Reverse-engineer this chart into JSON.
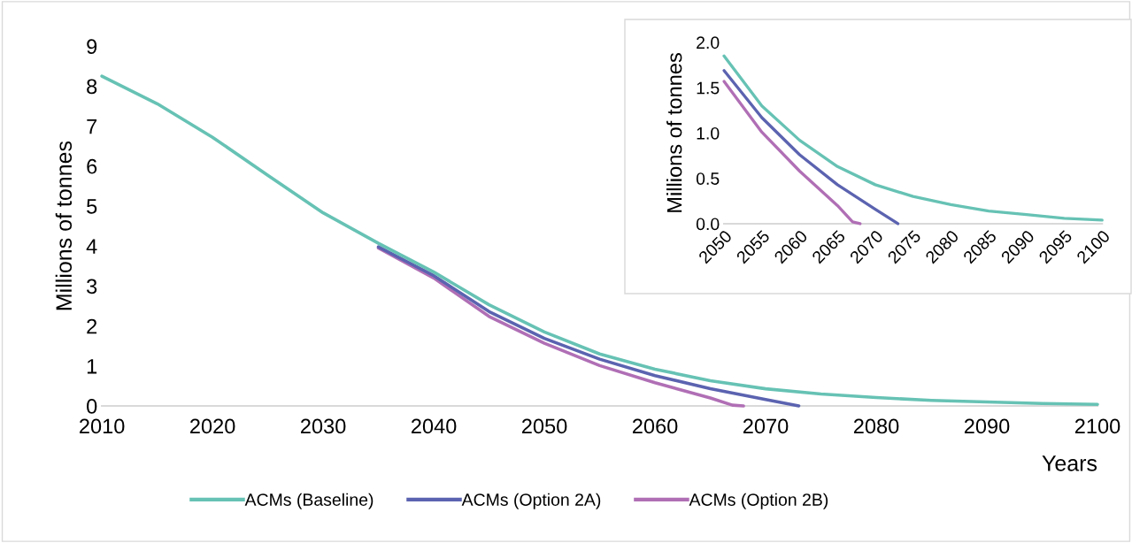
{
  "chart_data": [
    {
      "type": "line",
      "xlabel": "Years",
      "ylabel": "Millions of tonnes",
      "xlim": [
        2010,
        2100
      ],
      "ylim": [
        0,
        9
      ],
      "xticks": [
        2010,
        2020,
        2030,
        2040,
        2050,
        2060,
        2070,
        2080,
        2090,
        2100
      ],
      "yticks": [
        0,
        1,
        2,
        3,
        4,
        5,
        6,
        7,
        8,
        9
      ],
      "grid": false,
      "legend": "bottom",
      "marker": "none",
      "line_style": "solid",
      "series": [
        {
          "name": "ACMs (Baseline)",
          "color": "#66c2b4",
          "x": [
            2010,
            2015,
            2020,
            2025,
            2030,
            2035,
            2040,
            2045,
            2050,
            2055,
            2060,
            2065,
            2070,
            2075,
            2080,
            2085,
            2090,
            2095,
            2100
          ],
          "values": [
            8.25,
            7.56,
            6.72,
            5.77,
            4.83,
            4.07,
            3.35,
            2.53,
            1.85,
            1.3,
            0.92,
            0.63,
            0.43,
            0.3,
            0.21,
            0.14,
            0.1,
            0.06,
            0.04
          ]
        },
        {
          "name": "ACMs (Option 2A)",
          "color": "#5b63b0",
          "x": [
            2035,
            2040,
            2045,
            2050,
            2055,
            2060,
            2065,
            2070,
            2073
          ],
          "values": [
            3.98,
            3.26,
            2.36,
            1.69,
            1.17,
            0.76,
            0.43,
            0.16,
            0
          ]
        },
        {
          "name": "ACMs (Option 2B)",
          "color": "#b06fb5",
          "x": [
            2035,
            2040,
            2045,
            2050,
            2055,
            2060,
            2065,
            2067,
            2068
          ],
          "values": [
            3.95,
            3.2,
            2.24,
            1.57,
            1.01,
            0.58,
            0.2,
            0.02,
            0
          ]
        }
      ]
    },
    {
      "type": "line",
      "ylabel": "Millions of tonnes",
      "xlim": [
        2050,
        2100
      ],
      "ylim": [
        0,
        2
      ],
      "xticks": [
        2050,
        2055,
        2060,
        2065,
        2070,
        2075,
        2080,
        2085,
        2090,
        2095,
        2100
      ],
      "yticks": [
        {
          "value": 0,
          "label": "0.0"
        },
        {
          "value": 0.5,
          "label": "0.5"
        },
        {
          "value": 1,
          "label": "1.0"
        },
        {
          "value": 1.5,
          "label": "1.5"
        },
        {
          "value": 2,
          "label": "2.0"
        }
      ],
      "grid": false,
      "legend": false,
      "marker": "none",
      "line_style": "solid",
      "series": [
        {
          "color": "#66c2b4",
          "x": [
            2050,
            2055,
            2060,
            2065,
            2070,
            2075,
            2080,
            2085,
            2090,
            2095,
            2100
          ],
          "values": [
            1.85,
            1.3,
            0.92,
            0.63,
            0.43,
            0.3,
            0.21,
            0.14,
            0.1,
            0.06,
            0.04
          ]
        },
        {
          "color": "#5b63b0",
          "x": [
            2050,
            2055,
            2060,
            2065,
            2070,
            2073
          ],
          "values": [
            1.69,
            1.17,
            0.76,
            0.43,
            0.16,
            0
          ]
        },
        {
          "color": "#b06fb5",
          "x": [
            2050,
            2055,
            2060,
            2065,
            2067,
            2068
          ],
          "values": [
            1.57,
            1.01,
            0.58,
            0.2,
            0.02,
            0
          ]
        }
      ]
    }
  ]
}
